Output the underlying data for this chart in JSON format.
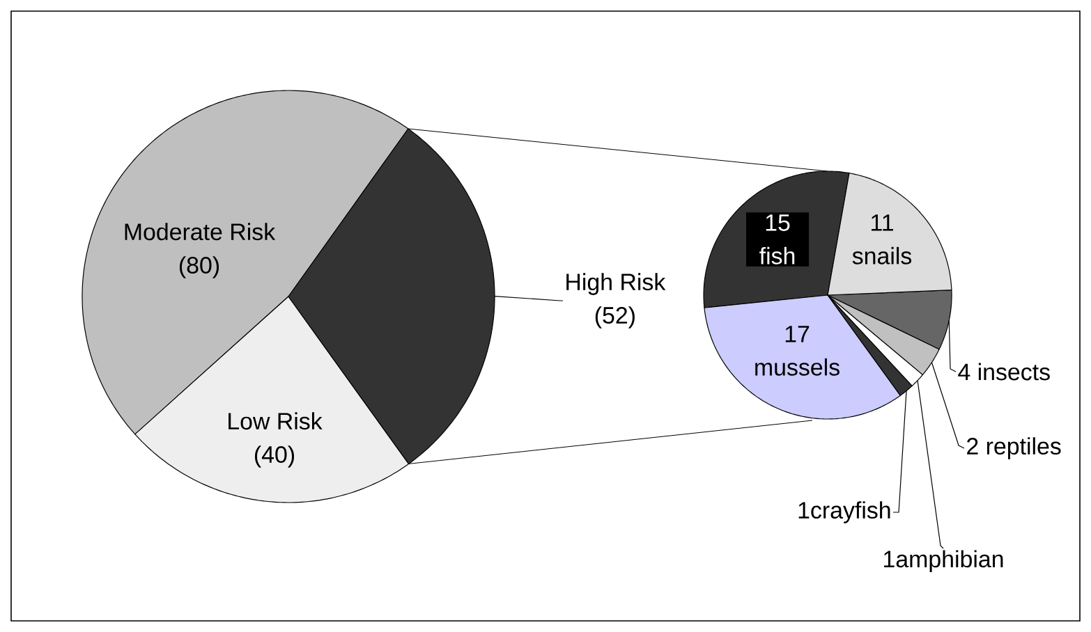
{
  "chart_data": [
    {
      "type": "pie",
      "categories": [
        "Moderate Risk",
        "Low Risk",
        "High Risk"
      ],
      "values": [
        80,
        40,
        52
      ],
      "value_labels": [
        "(80)",
        "(40)",
        "(52)"
      ],
      "colors": [
        "#bfbfbf",
        "#eeeeee",
        "#333333"
      ]
    },
    {
      "type": "pie",
      "categories": [
        "15 fish",
        "17 mussels",
        "1crayfish",
        "1amphibian",
        "2 reptiles",
        "4 insects",
        "11 snails"
      ],
      "values": [
        15,
        17,
        1,
        1,
        2,
        4,
        11
      ],
      "colors": [
        "#333333",
        "#ccccff",
        "#333333",
        "#ffffff",
        "#c0c0c0",
        "#666666",
        "#dddddd"
      ]
    }
  ]
}
